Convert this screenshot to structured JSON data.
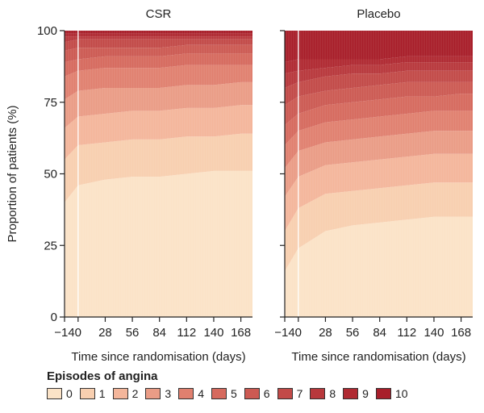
{
  "chart_data": {
    "type": "area",
    "stacked": true,
    "ylabel": "Proportion of patients (%)",
    "ylim": [
      0,
      100
    ],
    "yticks": [
      0,
      25,
      50,
      75,
      100
    ],
    "xlim": [
      -14,
      180
    ],
    "xticks": [
      -14,
      0,
      28,
      56,
      84,
      112,
      140,
      168
    ],
    "legend": {
      "title": "Episodes of angina",
      "categories": [
        "0",
        "1",
        "2",
        "3",
        "4",
        "5",
        "6",
        "7",
        "8",
        "9",
        "10"
      ],
      "colors": [
        "#fbe3c7",
        "#f8cfb0",
        "#f4b69b",
        "#ea9c86",
        "#e0806f",
        "#d66a5e",
        "#cc5a53",
        "#c24a48",
        "#b8383c",
        "#b02a32",
        "#a81e2a"
      ]
    },
    "panels": [
      {
        "title": "CSR",
        "xlabel": "Time since randomisation (days)",
        "cumulative_boundaries": [
          {
            "x": -14,
            "values": [
              40,
              55,
              66,
              76,
              84,
              89,
              93,
              96,
              98,
              99,
              100
            ]
          },
          {
            "x": 0,
            "values": [
              46,
              60,
              70,
              79,
              86,
              90,
              94,
              97,
              98,
              99,
              100
            ]
          },
          {
            "x": 28,
            "values": [
              48,
              61,
              71,
              80,
              87,
              91,
              94,
              97,
              98,
              99,
              100
            ]
          },
          {
            "x": 56,
            "values": [
              49,
              62,
              72,
              80,
              87,
              91,
              94,
              97,
              98,
              99,
              100
            ]
          },
          {
            "x": 84,
            "values": [
              49,
              62,
              72,
              80,
              87,
              91,
              94,
              97,
              98,
              99,
              100
            ]
          },
          {
            "x": 112,
            "values": [
              50,
              63,
              73,
              81,
              88,
              92,
              95,
              97,
              98,
              99,
              100
            ]
          },
          {
            "x": 140,
            "values": [
              51,
              63,
              73,
              81,
              88,
              92,
              95,
              97,
              98,
              99,
              100
            ]
          },
          {
            "x": 168,
            "values": [
              51,
              64,
              74,
              82,
              88,
              92,
              95,
              97,
              98,
              99,
              100
            ]
          },
          {
            "x": 180,
            "values": [
              51,
              64,
              74,
              82,
              88,
              92,
              95,
              97,
              98,
              99,
              100
            ]
          }
        ]
      },
      {
        "title": "Placebo",
        "xlabel": "Time since randomisation (days)",
        "cumulative_boundaries": [
          {
            "x": -14,
            "values": [
              16,
              30,
              42,
              52,
              60,
              67,
              74,
              80,
              85,
              89,
              100
            ]
          },
          {
            "x": 0,
            "values": [
              24,
              38,
              49,
              58,
              65,
              71,
              77,
              82,
              86,
              90,
              100
            ]
          },
          {
            "x": 28,
            "values": [
              30,
              43,
              53,
              61,
              68,
              74,
              79,
              84,
              87,
              90,
              100
            ]
          },
          {
            "x": 56,
            "values": [
              32,
              44,
              54,
              62,
              69,
              75,
              80,
              85,
              88,
              90,
              100
            ]
          },
          {
            "x": 84,
            "values": [
              33,
              45,
              55,
              63,
              70,
              76,
              81,
              85,
              88,
              90,
              100
            ]
          },
          {
            "x": 112,
            "values": [
              34,
              46,
              56,
              64,
              71,
              77,
              82,
              86,
              89,
              91,
              100
            ]
          },
          {
            "x": 140,
            "values": [
              35,
              47,
              57,
              65,
              72,
              77,
              82,
              86,
              89,
              91,
              100
            ]
          },
          {
            "x": 168,
            "values": [
              35,
              47,
              57,
              65,
              72,
              78,
              82,
              86,
              89,
              91,
              100
            ]
          },
          {
            "x": 180,
            "values": [
              35,
              47,
              57,
              65,
              72,
              78,
              82,
              86,
              89,
              91,
              100
            ]
          }
        ]
      }
    ]
  }
}
